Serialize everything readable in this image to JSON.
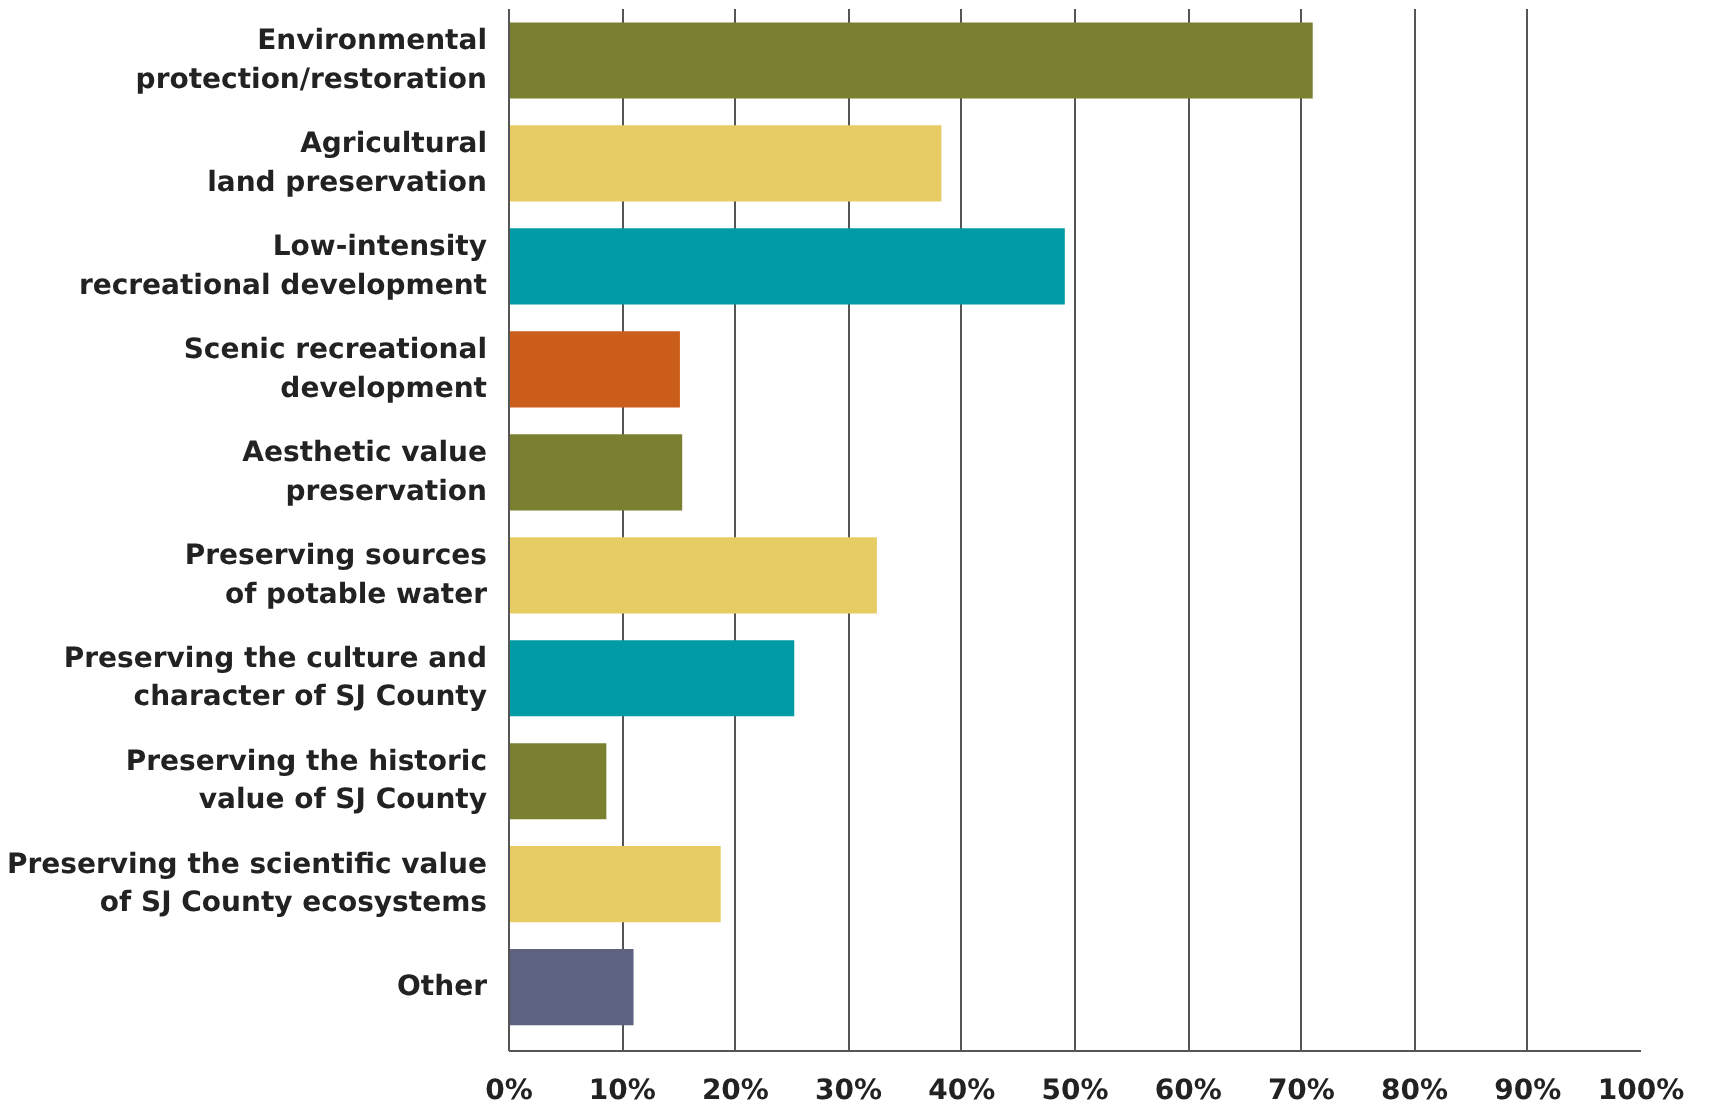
{
  "chart_data": {
    "type": "bar",
    "orientation": "horizontal",
    "categories": [
      "Environmental\nprotection/restoration",
      "Agricultural\nland preservation",
      "Low-intensity\nrecreational development",
      "Scenic recreational\ndevelopment",
      "Aesthetic value\npreservation",
      "Preserving sources\nof potable water",
      "Preserving the culture and\ncharacter of SJ County",
      "Preserving the historic\nvalue of SJ County",
      "Preserving the scientific value\nof SJ County ecosystems",
      "Other"
    ],
    "values": [
      71.0,
      38.2,
      49.1,
      15.1,
      15.3,
      32.5,
      25.2,
      8.6,
      18.7,
      11.0
    ],
    "colors": [
      "#7a8030",
      "#e6cc62",
      "#019ba6",
      "#cb5e1a",
      "#7a8030",
      "#e6cc62",
      "#019ba6",
      "#7a8030",
      "#e6cc62",
      "#5e6281"
    ],
    "xlim": [
      0,
      100
    ],
    "xticks": [
      {
        "value": 0,
        "label": "0%"
      },
      {
        "value": 10,
        "label": "10%"
      },
      {
        "value": 20,
        "label": "20%"
      },
      {
        "value": 30,
        "label": "30%"
      },
      {
        "value": 40,
        "label": "40%"
      },
      {
        "value": 50,
        "label": "50%"
      },
      {
        "value": 60,
        "label": "60%"
      },
      {
        "value": 70,
        "label": "70%"
      },
      {
        "value": 80,
        "label": "80%"
      },
      {
        "value": 90,
        "label": "90%"
      },
      {
        "value": 100,
        "label": "100%"
      }
    ],
    "grid": "x"
  }
}
